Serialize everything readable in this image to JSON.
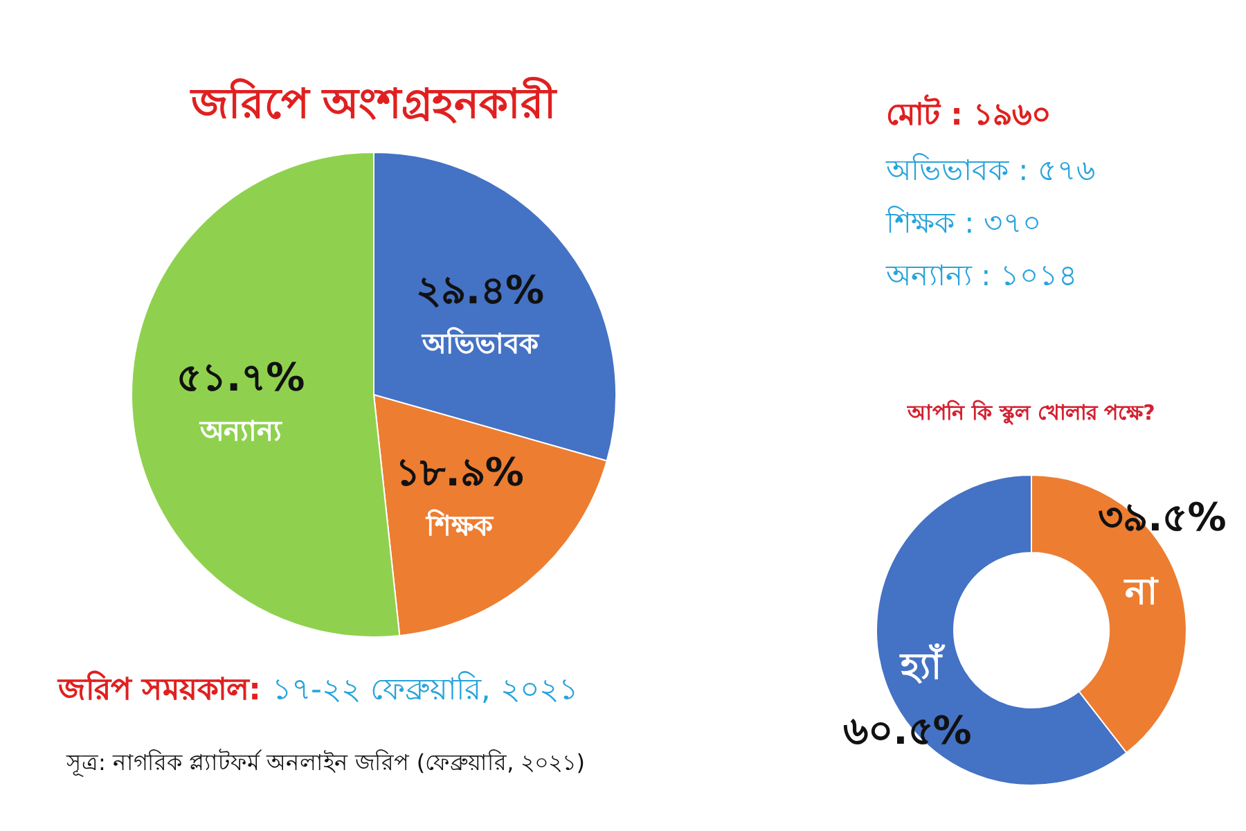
{
  "chart_data": [
    {
      "type": "pie",
      "title": "জরিপে অংশগ্রহনকারী",
      "categories": [
        "অভিভাবক",
        "শিক্ষক",
        "অন্যান্য"
      ],
      "values": [
        29.4,
        18.9,
        51.7
      ],
      "value_labels": [
        "২৯.৪%",
        "১৮.৯%",
        "৫১.৭%"
      ],
      "colors": [
        "#4472c4",
        "#ed7d31",
        "#8fd14f"
      ],
      "annotations": [
        "মোট : ১৯৬০",
        "অভিভাবক : ৫৭৬",
        "শিক্ষক : ৩৭০",
        "অন্যান্য : ১০১৪",
        "জরিপ সময়কাল:",
        "১৭-২২ ফেব্রুয়ারি, ২০২১",
        "সূত্র: নাগরিক প্ল্যাটফর্ম অনলাইন জরিপ (ফেব্রুয়ারি, ২০২১)"
      ]
    },
    {
      "type": "donut",
      "title": "আপনি কি স্কুল খোলার পক্ষে?",
      "categories": [
        "না",
        "হ্যাঁ"
      ],
      "values": [
        39.5,
        60.5
      ],
      "value_labels": [
        "৩৯.৫%",
        "৬০.৫%"
      ],
      "colors": [
        "#ed7d31",
        "#4472c4"
      ]
    }
  ]
}
